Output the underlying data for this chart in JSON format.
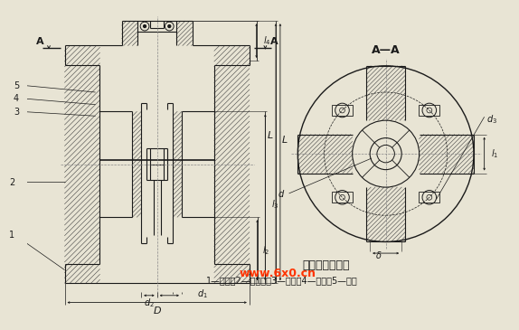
{
  "bg_color": "#e8e4d4",
  "draw_bg": "#f5f3ec",
  "line_color": "#1a1a1a",
  "hatch_color": "#444444",
  "title": "立式夹壳联轴器",
  "subtitle": "1—夹壳；2—惠币环；3—垫圈；4—螺母；5—螺栓",
  "section_label": "A—A",
  "watermark": "www.6x0.cn",
  "labels": {
    "l4": "$l_4$",
    "L": "$L$",
    "l3": "$l_3$",
    "l2": "$l_2$",
    "d2": "$d_2$",
    "d1": "$d_1$",
    "D": "$D$",
    "l1": "$l_1$",
    "d": "$d$",
    "d3": "$d_3$",
    "delta": "$\\delta$",
    "num5": "5",
    "num4": "4",
    "num3": "3",
    "num2": "2",
    "num1": "1"
  }
}
